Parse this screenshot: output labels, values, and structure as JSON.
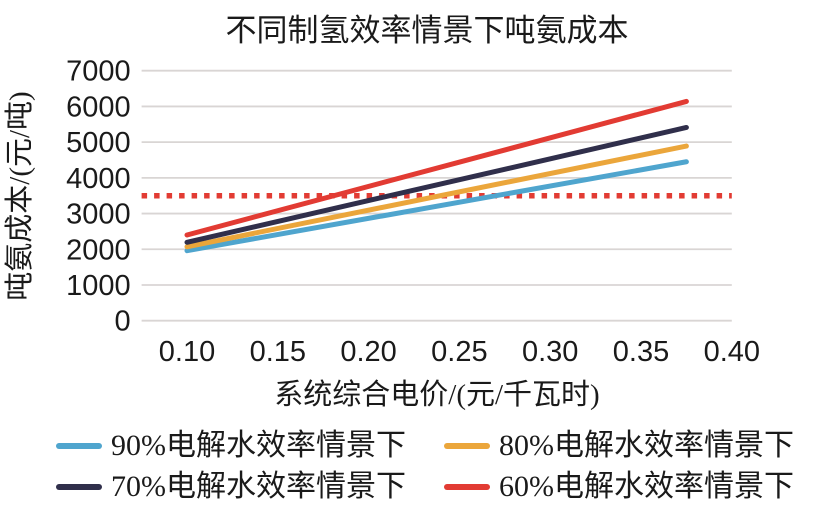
{
  "figure_title": "不同制氢效率情景下吨氨成本",
  "chart_data": {
    "type": "line",
    "title": "不同制氢效率情景下吨氨成本",
    "xlabel": "系统综合电价/(元/千瓦时)",
    "ylabel": "吨氨成本/(元/吨)",
    "xlim": [
      0.075,
      0.4
    ],
    "ylim": [
      0,
      7000
    ],
    "x_ticks": [
      "0.10",
      "0.15",
      "0.20",
      "0.25",
      "0.30",
      "0.35",
      "0.40"
    ],
    "y_ticks": [
      "0",
      "1000",
      "2000",
      "3000",
      "4000",
      "5000",
      "6000",
      "7000"
    ],
    "grid": true,
    "legend_position": "bottom",
    "series": [
      {
        "name": "90%电解水效率情景下",
        "color": "#4FA5CE",
        "x": [
          0.1,
          0.375
        ],
        "values": [
          1960,
          4450
        ]
      },
      {
        "name": "80%电解水效率情景下",
        "color": "#EBA63B",
        "x": [
          0.1,
          0.375
        ],
        "values": [
          2070,
          4890
        ]
      },
      {
        "name": "70%电解水效率情景下",
        "color": "#302F4B",
        "x": [
          0.1,
          0.375
        ],
        "values": [
          2195,
          5410
        ]
      },
      {
        "name": "60%电解水效率情景下",
        "color": "#E23B33",
        "x": [
          0.1,
          0.375
        ],
        "values": [
          2400,
          6140
        ]
      }
    ],
    "reference_line": {
      "value": 3500,
      "color": "#E23B33",
      "style": "dotted"
    }
  },
  "colors": {
    "grid": "#D9D5D4",
    "text": "#1A1A1A",
    "background": "#FFFFFF"
  }
}
